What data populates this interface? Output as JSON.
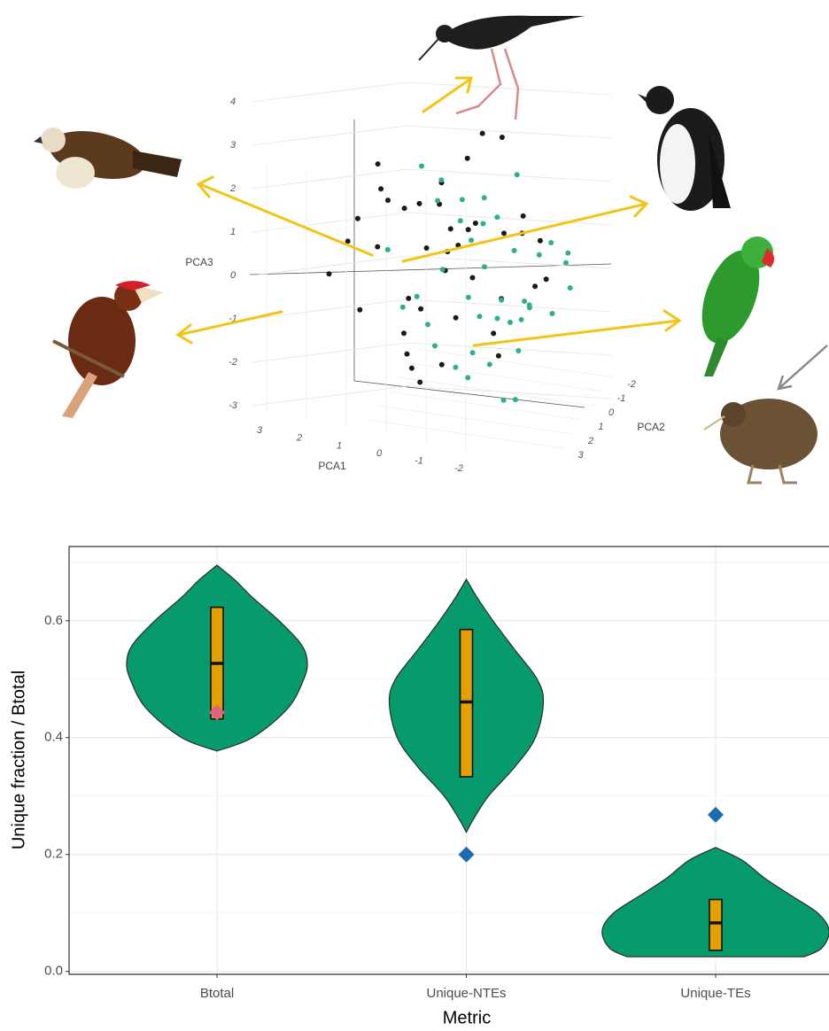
{
  "chart_data": [
    {
      "type": "scatter3d",
      "xlabel": "PCA1",
      "ylabel": "PCA2",
      "zlabel": "PCA3",
      "xlim": [
        -2.8,
        3.6
      ],
      "ylim": [
        -2.6,
        3.4
      ],
      "zlim": [
        -3.4,
        4.2
      ],
      "xticks": [
        -2,
        -1,
        0,
        1,
        2,
        3
      ],
      "yticks": [
        -2,
        -1,
        0,
        1,
        2,
        3
      ],
      "zticks": [
        -3,
        -2,
        -1,
        0,
        1,
        2,
        3,
        4
      ],
      "series": [
        {
          "color": "#1a1a1a",
          "x": [
            0.5,
            -1.2,
            1.8,
            2.5,
            -0.3,
            0.9,
            -2.0,
            1.2,
            0.1,
            -0.8,
            2.9,
            3.4,
            1.5,
            -1.5,
            0.4,
            0.7,
            -0.5,
            1.0,
            2.2,
            -1.0,
            0.2,
            1.6,
            -0.2,
            0.8,
            1.9,
            -1.8,
            0.3,
            2.7,
            -0.6,
            1.1,
            0.0,
            1.3,
            -1.3,
            0.6,
            2.0,
            -0.9,
            1.4,
            0.9,
            -0.4,
            3.1
          ],
          "y": [
            0.2,
            -0.5,
            1.0,
            -0.8,
            0.6,
            -1.2,
            0.3,
            1.5,
            -0.2,
            0.8,
            -0.4,
            0.5,
            -1.0,
            -0.6,
            1.2,
            0.0,
            -1.5,
            0.9,
            0.4,
            1.1,
            -0.7,
            -0.3,
            0.5,
            1.8,
            -1.1,
            0.1,
            0.7,
            0.2,
            -0.9,
            -0.1,
            1.4,
            0.6,
            -0.2,
            -1.3,
            0.9,
            0.4,
            1.0,
            -0.6,
            0.3,
            -0.2
          ],
          "z": [
            0.3,
            0.8,
            1.5,
            -0.2,
            1.2,
            -0.6,
            0.1,
            -1.8,
            2.4,
            -1.2,
            0.5,
            -0.6,
            0.9,
            -0.4,
            -2.0,
            1.8,
            0.4,
            -0.9,
            2.1,
            -1.6,
            0.6,
            -1.1,
            -0.1,
            -2.3,
            0.7,
            0.9,
            1.0,
            -1.4,
            2.8,
            0.2,
            -0.8,
            -2.4,
            1.3,
            0.0,
            1.7,
            -0.5,
            -1.5,
            1.1,
            3.2,
            0.0
          ]
        },
        {
          "color": "#2fb08a",
          "x": [
            -0.5,
            0.3,
            -1.0,
            -1.8,
            0.8,
            -0.2,
            -1.4,
            0.5,
            -2.3,
            -0.8,
            1.2,
            -0.1,
            -1.6,
            0.2,
            -2.6,
            -0.6,
            0.9,
            -1.2,
            0.0,
            -2.0,
            1.5,
            -0.4,
            -0.9,
            0.6,
            -1.5,
            -2.2,
            0.1,
            -0.7,
            1.0,
            -1.1,
            -0.3,
            -1.9,
            0.4,
            -1.3,
            2.0,
            -0.5,
            -2.4,
            0.7,
            -0.9,
            -1.7
          ],
          "y": [
            0.5,
            -0.3,
            0.8,
            0.2,
            1.0,
            -0.7,
            0.4,
            1.5,
            -0.5,
            1.2,
            0.0,
            -1.0,
            0.9,
            0.6,
            0.3,
            -0.4,
            -0.8,
            1.4,
            0.1,
            -0.2,
            0.7,
            1.8,
            -1.2,
            0.3,
            1.1,
            0.5,
            -0.6,
            0.0,
            1.3,
            -0.1,
            0.9,
            1.6,
            -0.9,
            0.6,
            0.2,
            1.0,
            -0.3,
            0.4,
            -0.5,
            0.8
          ],
          "z": [
            0.2,
            0.9,
            -0.4,
            0.6,
            -1.2,
            1.4,
            -0.9,
            -1.5,
            0.3,
            -1.8,
            2.1,
            0.7,
            -0.3,
            -2.2,
            0.0,
            1.1,
            1.6,
            -2.5,
            -0.7,
            0.8,
            -1.0,
            -2.0,
            1.9,
            -0.1,
            -1.4,
            -0.6,
            0.4,
            -1.1,
            -0.5,
            0.5,
            -1.7,
            -0.2,
            1.2,
            -2.7,
            0.1,
            -0.8,
            0.6,
            1.5,
            -1.3,
            -0.4
          ]
        }
      ]
    },
    {
      "type": "violin",
      "xlabel": "Metric",
      "ylabel": "Unique fraction / Btotal",
      "categories": [
        "Btotal",
        "Unique-NTEs",
        "Unique-TEs"
      ],
      "ylim": [
        -0.005,
        0.727
      ],
      "yticks": [
        {
          "value": 0,
          "label": "0.0"
        },
        0.2,
        0.4,
        0.6
      ],
      "grid": true,
      "color": "#079a6c",
      "box_color": "#e69f00",
      "violins": [
        {
          "y": [
            0.377,
            0.4,
            0.45,
            0.5,
            0.53,
            0.56,
            0.6,
            0.64,
            0.67,
            0.695
          ],
          "width": [
            0,
            0.142,
            0.284,
            0.348,
            0.362,
            0.337,
            0.249,
            0.142,
            0.071,
            0
          ]
        },
        {
          "y": [
            0.238,
            0.26,
            0.3,
            0.35,
            0.4,
            0.46,
            0.5,
            0.55,
            0.6,
            0.64,
            0.671
          ],
          "width": [
            0,
            0.028,
            0.089,
            0.195,
            0.277,
            0.309,
            0.284,
            0.195,
            0.107,
            0.043,
            0
          ]
        },
        {
          "y": [
            0.025,
            0.04,
            0.07,
            0.1,
            0.13,
            0.16,
            0.19,
            0.212
          ],
          "width": [
            0.355,
            0.426,
            0.455,
            0.409,
            0.302,
            0.195,
            0.107,
            0
          ]
        }
      ],
      "boxes": [
        {
          "q1": 0.432,
          "median": 0.527,
          "q3": 0.623
        },
        {
          "q1": 0.333,
          "median": 0.461,
          "q3": 0.585
        },
        {
          "q1": 0.036,
          "median": 0.083,
          "q3": 0.123
        }
      ],
      "points": [
        {
          "value": 0.443,
          "color": "#e4607f"
        },
        {
          "value": 0.2,
          "color": "#1b6db3"
        },
        {
          "value": 0.268,
          "color": "#1b6db3"
        }
      ]
    }
  ]
}
